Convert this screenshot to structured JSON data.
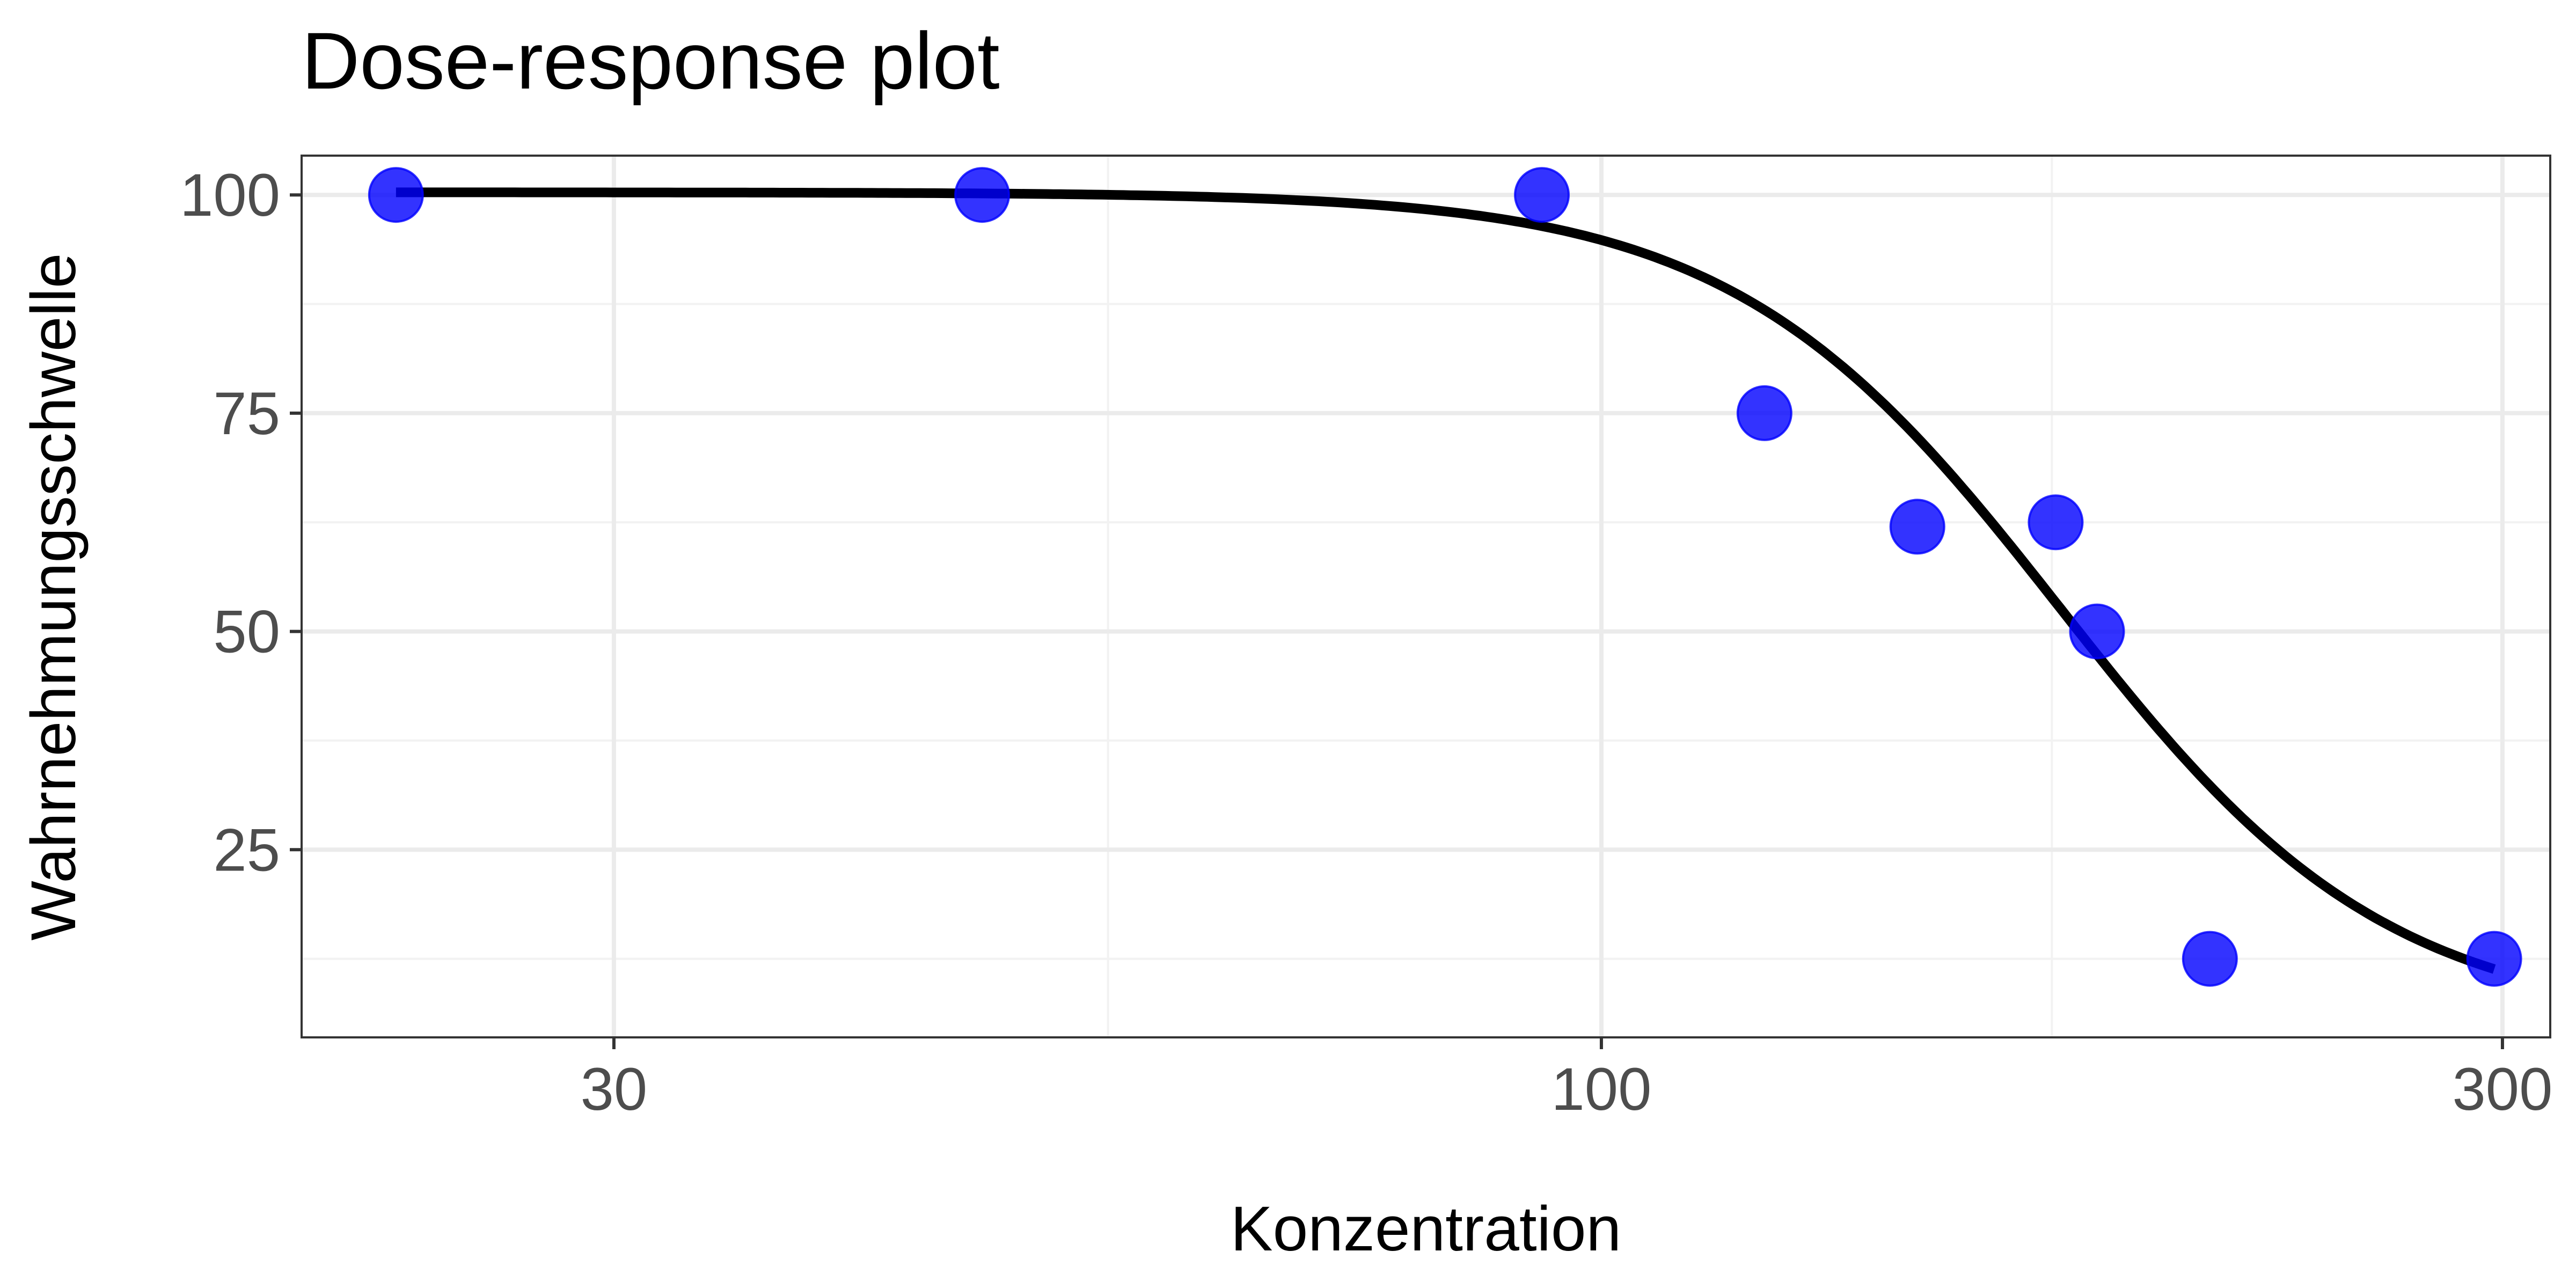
{
  "chart_data": {
    "type": "scatter",
    "title": "Dose-response plot",
    "xlabel": "Konzentration",
    "ylabel": "Wahrnehmungsschwelle",
    "x_scale": "log10",
    "xlim": [
      20.5,
      318
    ],
    "ylim": [
      3.5,
      104.5
    ],
    "x_ticks": [
      30,
      100,
      300
    ],
    "x_tick_labels": [
      "30",
      "100",
      "300"
    ],
    "x_minor_ticks": [
      54.8,
      173.2
    ],
    "y_ticks": [
      25,
      50,
      75,
      100
    ],
    "y_tick_labels": [
      "25",
      "50",
      "75",
      "100"
    ],
    "y_minor_ticks": [
      12.5,
      37.5,
      62.5,
      87.5
    ],
    "grid": true,
    "point_color": "#0000FF",
    "line_color": "#000000",
    "series": [
      {
        "type": "points",
        "x": [
          23,
          47,
          93,
          122,
          147,
          174,
          183,
          210,
          297
        ],
        "y": [
          100,
          100,
          100,
          75,
          62,
          62.5,
          50,
          12.5,
          12.5
        ]
      },
      {
        "type": "fit",
        "model": "log-logistic",
        "params": {
          "lower": 5,
          "upper": 100.3,
          "ec50": 175,
          "slope": 5
        },
        "x_range": [
          23,
          297
        ]
      }
    ]
  }
}
